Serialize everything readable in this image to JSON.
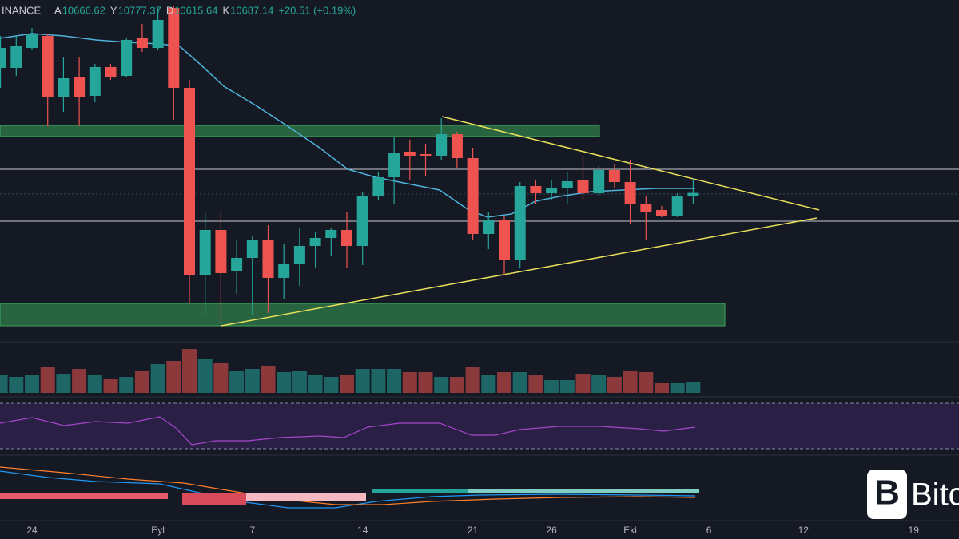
{
  "chart_data": {
    "type": "candlestick",
    "exchange": "INANCE",
    "ohlc_labels": [
      "A",
      "Y",
      "D",
      "K"
    ],
    "change": "+20.51 (+0.19%)",
    "watermark": "Bitc",
    "categories": [
      null,
      null,
      "24",
      null,
      null,
      null,
      null,
      null,
      null,
      null,
      "Eyl",
      null,
      null,
      null,
      null,
      null,
      "7",
      null,
      null,
      null,
      null,
      null,
      null,
      "14",
      null,
      null,
      null,
      null,
      null,
      null,
      "21",
      null,
      null,
      null,
      null,
      "26",
      null,
      null,
      null,
      null,
      "Eki",
      null,
      null,
      null,
      null,
      "6",
      null,
      null,
      null,
      null,
      null,
      "12",
      null,
      null,
      null,
      null,
      null,
      null,
      "19",
      null
    ],
    "open": [
      11470,
      11470,
      11595,
      11670,
      11285,
      11415,
      11295,
      11475,
      11420,
      11655,
      11595,
      11845,
      11345,
      10170,
      10455,
      10195,
      10280,
      10395,
      10155,
      10245,
      10355,
      10405,
      10455,
      10355,
      10670,
      10785,
      10945,
      10930,
      10920,
      11055,
      10905,
      10430,
      10520,
      10270,
      10730,
      10685,
      10720,
      10770,
      10685,
      10830,
      10755,
      10620,
      10580,
      10545,
      10666.62,
      null,
      null,
      null,
      null,
      null,
      null,
      null,
      null,
      null,
      null,
      null,
      null,
      null,
      null,
      null
    ],
    "high": [
      11670,
      11670,
      11720,
      11685,
      11535,
      11535,
      11495,
      11495,
      11655,
      11745,
      11845,
      11855,
      11395,
      10570,
      10570,
      10395,
      10420,
      10485,
      10370,
      10470,
      10445,
      10470,
      10570,
      10695,
      10820,
      11035,
      11020,
      10995,
      11155,
      11070,
      10970,
      10570,
      10545,
      10755,
      10770,
      10770,
      10820,
      10920,
      10855,
      10870,
      10895,
      10670,
      10605,
      10685,
      10777.37,
      null,
      null,
      null,
      null,
      null,
      null,
      null,
      null,
      null,
      null,
      null,
      null,
      null,
      null,
      null
    ],
    "low": [
      11345,
      11420,
      11585,
      11105,
      11195,
      11105,
      11255,
      11395,
      11415,
      11570,
      11585,
      11145,
      9995,
      9920,
      9870,
      10055,
      9920,
      9935,
      10020,
      10105,
      10215,
      10295,
      10220,
      10235,
      10645,
      10620,
      10770,
      10795,
      10895,
      10845,
      10395,
      10335,
      10170,
      10220,
      10620,
      10645,
      10620,
      10645,
      10670,
      10720,
      10495,
      10395,
      10535,
      10535,
      10615.64,
      null,
      null,
      null,
      null,
      null,
      null,
      null,
      null,
      null,
      null,
      null,
      null,
      null,
      null,
      null
    ],
    "close": [
      11595,
      11605,
      11685,
      11285,
      11405,
      11285,
      11475,
      11415,
      11645,
      11595,
      11770,
      11345,
      10170,
      10455,
      10185,
      10280,
      10395,
      10155,
      10245,
      10355,
      10405,
      10455,
      10355,
      10670,
      10785,
      10935,
      10920,
      10920,
      11055,
      10905,
      10430,
      10520,
      10270,
      10730,
      10685,
      10720,
      10760,
      10685,
      10830,
      10755,
      10620,
      10570,
      10545,
      10670,
      10687.14,
      null,
      null,
      null,
      null,
      null,
      null,
      null,
      null,
      null,
      null,
      null,
      null,
      null,
      null,
      null
    ],
    "volume": [
      22,
      20,
      22,
      32,
      24,
      30,
      22,
      17,
      20,
      27,
      36,
      40,
      55,
      42,
      37,
      27,
      30,
      34,
      26,
      28,
      22,
      20,
      22,
      30,
      30,
      30,
      26,
      26,
      20,
      20,
      32,
      22,
      26,
      26,
      22,
      16,
      16,
      24,
      22,
      20,
      28,
      26,
      12,
      12,
      14,
      null,
      null,
      null,
      null,
      null,
      null,
      null,
      null,
      null,
      null,
      null,
      null,
      null,
      null,
      null
    ],
    "ylim": [
      9780,
      11895
    ],
    "vlim": [
      0,
      60
    ],
    "up_color": "#26a69a",
    "down_color": "#ef5350"
  }
}
